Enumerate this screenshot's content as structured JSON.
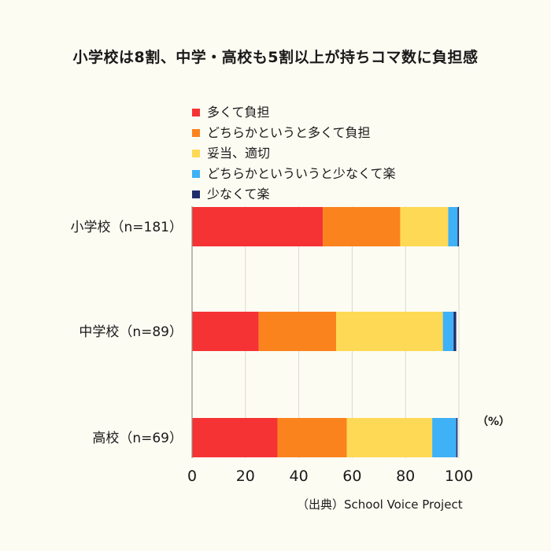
{
  "title": "小学校は8割、中学・高校も5割以上が持ちコマ数に負担感",
  "unit_label": "（%）",
  "source_note": "（出典）School Voice Project",
  "colors": {
    "background": "#fdfcf3",
    "grid": "#d9d9d2",
    "axis": "#8f8f8a"
  },
  "chart_data": {
    "type": "bar",
    "orientation": "horizontal",
    "stacked": true,
    "categories": [
      "小学校（n=181）",
      "中学校（n=89）",
      "高校（n=69）"
    ],
    "series": [
      {
        "name": "多くて負担",
        "color": "#f53334",
        "values": [
          49,
          25,
          32
        ]
      },
      {
        "name": "どちらかというと多くて負担",
        "color": "#fb831e",
        "values": [
          29,
          29,
          26
        ]
      },
      {
        "name": "妥当、適切",
        "color": "#fed955",
        "values": [
          18,
          40,
          32
        ]
      },
      {
        "name": "どちらかといういうと少なくて楽",
        "color": "#3fb1f7",
        "values": [
          3.5,
          4,
          9
        ]
      },
      {
        "name": "少なくて楽",
        "color": "#1f2e6a",
        "values": [
          0.5,
          1,
          0.5
        ]
      }
    ],
    "xlim": [
      0,
      100
    ],
    "xticks": [
      0,
      20,
      40,
      60,
      80,
      100
    ],
    "grid": true,
    "legend_position": "top"
  }
}
